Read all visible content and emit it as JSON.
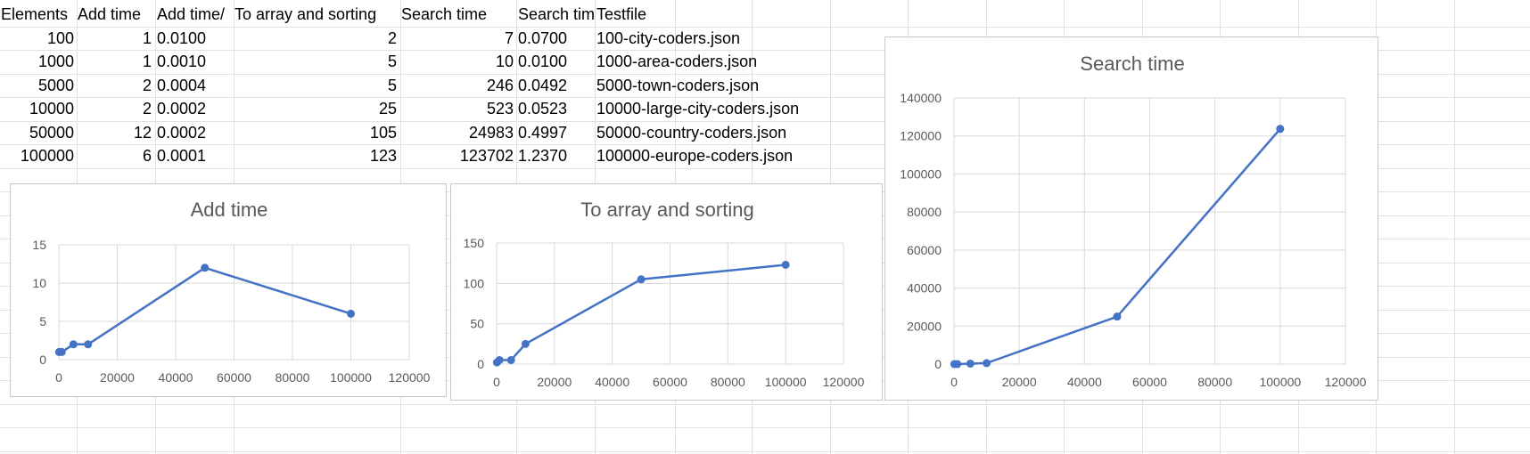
{
  "table": {
    "headers": [
      "Elements",
      "Add time",
      "Add time/",
      "To array and sorting",
      "Search time",
      "Search tim",
      "Testfile"
    ],
    "rows": [
      [
        "100",
        "1",
        "0.0100",
        "2",
        "7",
        "0.0700",
        "100-city-coders.json"
      ],
      [
        "1000",
        "1",
        "0.0010",
        "5",
        "10",
        "0.0100",
        "1000-area-coders.json"
      ],
      [
        "5000",
        "2",
        "0.0004",
        "5",
        "246",
        "0.0492",
        "5000-town-coders.json"
      ],
      [
        "10000",
        "2",
        "0.0002",
        "25",
        "523",
        "0.0523",
        "10000-large-city-coders.json"
      ],
      [
        "50000",
        "12",
        "0.0002",
        "105",
        "24983",
        "0.4997",
        "50000-country-coders.json"
      ],
      [
        "100000",
        "6",
        "0.0001",
        "123",
        "123702",
        "1.2370",
        "100000-europe-coders.json"
      ]
    ]
  },
  "colors": {
    "series": "#4472c4",
    "grid": "#d9d9d9",
    "text": "#595959"
  },
  "chart_data": [
    {
      "type": "line",
      "title": "Add time",
      "x": [
        100,
        1000,
        5000,
        10000,
        50000,
        100000
      ],
      "series": [
        {
          "values": [
            1,
            1,
            2,
            2,
            12,
            6
          ]
        }
      ],
      "xlim": [
        0,
        120000
      ],
      "ylim": [
        0,
        15
      ],
      "xticks": [
        0,
        20000,
        40000,
        60000,
        80000,
        100000,
        120000
      ],
      "yticks": [
        0,
        5,
        10,
        15
      ],
      "grid": true,
      "legend": "none"
    },
    {
      "type": "line",
      "title": "To array and sorting",
      "x": [
        100,
        1000,
        5000,
        10000,
        50000,
        100000
      ],
      "series": [
        {
          "values": [
            2,
            5,
            5,
            25,
            105,
            123
          ]
        }
      ],
      "xlim": [
        0,
        120000
      ],
      "ylim": [
        0,
        150
      ],
      "xticks": [
        0,
        20000,
        40000,
        60000,
        80000,
        100000,
        120000
      ],
      "yticks": [
        0,
        50,
        100,
        150
      ],
      "grid": true,
      "legend": "none"
    },
    {
      "type": "line",
      "title": "Search time",
      "x": [
        100,
        1000,
        5000,
        10000,
        50000,
        100000
      ],
      "series": [
        {
          "values": [
            7,
            10,
            246,
            523,
            24983,
            123702
          ]
        }
      ],
      "xlim": [
        0,
        120000
      ],
      "ylim": [
        0,
        140000
      ],
      "xticks": [
        0,
        20000,
        40000,
        60000,
        80000,
        100000,
        120000
      ],
      "yticks": [
        0,
        20000,
        40000,
        60000,
        80000,
        100000,
        120000,
        140000
      ],
      "grid": true,
      "legend": "none"
    }
  ]
}
